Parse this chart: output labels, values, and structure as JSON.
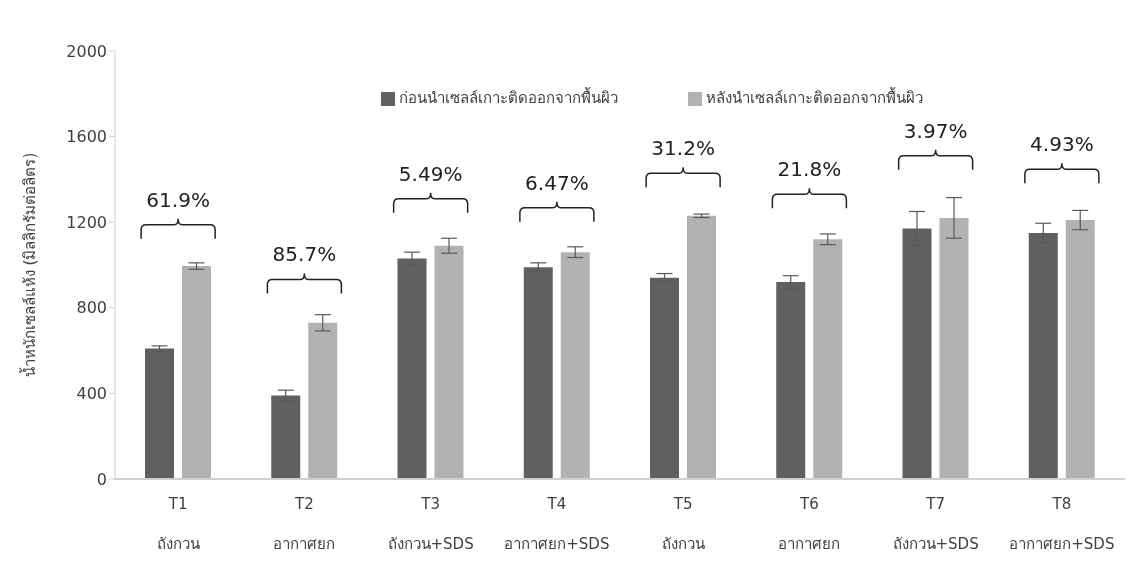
{
  "chart_data": {
    "type": "bar",
    "ylabel": "น้ำหนักเซลล์แห้ง (มิลลิกรัมต่อลิตร)",
    "categories": [
      "T1\nถังกวน",
      "T2\nอากาศยก",
      "T3\nถังกวน+SDS",
      "T4\nอากาศยก+SDS",
      "T5\nถังกวน",
      "T6\nอากาศยก",
      "T7\nถังกวน+SDS",
      "T8\nอากาศยก+SDS"
    ],
    "series": [
      {
        "name": "ก่อนนำเซลล์เกาะติดออกจากพื้นผิว",
        "color": "#606060",
        "values": [
          610,
          390,
          1030,
          990,
          940,
          920,
          1170,
          1150
        ],
        "errors": [
          12,
          25,
          30,
          20,
          20,
          30,
          80,
          45
        ]
      },
      {
        "name": "หลังนำเซลล์เกาะติดออกจากพื้นผิว",
        "color": "#b2b2b2",
        "values": [
          995,
          730,
          1090,
          1060,
          1230,
          1120,
          1220,
          1210
        ],
        "errors": [
          15,
          38,
          35,
          25,
          8,
          25,
          95,
          45
        ]
      }
    ],
    "annotations": [
      "61.9%",
      "85.7%",
      "5.49%",
      "6.47%",
      "31.2%",
      "21.8%",
      "3.97%",
      "4.93%"
    ],
    "ylim": [
      0,
      2000
    ],
    "yticks": [
      0,
      400,
      800,
      1200,
      1600,
      2000
    ],
    "grid": false,
    "legend": "top"
  }
}
